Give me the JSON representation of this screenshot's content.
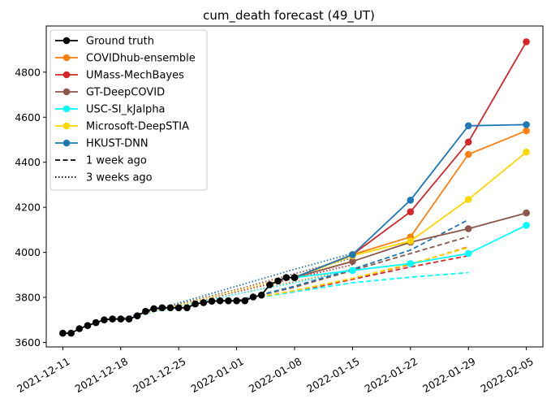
{
  "chart_data": {
    "type": "line",
    "title": "cum_death forecast (49_UT)",
    "xlabel": "",
    "ylabel": "",
    "x_ticks": [
      "2021-12-11",
      "2021-12-18",
      "2021-12-25",
      "2022-01-01",
      "2022-01-08",
      "2022-01-15",
      "2022-01-22",
      "2022-01-29",
      "2022-02-05"
    ],
    "y_ticks": [
      3600,
      3800,
      4000,
      4200,
      4400,
      4600,
      4800
    ],
    "xlim": [
      "2021-12-09",
      "2022-02-07"
    ],
    "ylim": [
      3580,
      5005
    ],
    "grid": false,
    "legend_position": "upper-left",
    "ground_truth": {
      "name": "Ground truth",
      "color": "#000000",
      "x": [
        "2021-12-11",
        "2021-12-12",
        "2021-12-13",
        "2021-12-14",
        "2021-12-15",
        "2021-12-16",
        "2021-12-17",
        "2021-12-18",
        "2021-12-19",
        "2021-12-20",
        "2021-12-21",
        "2021-12-22",
        "2021-12-23",
        "2021-12-24",
        "2021-12-25",
        "2021-12-26",
        "2021-12-27",
        "2021-12-28",
        "2021-12-29",
        "2021-12-30",
        "2021-12-31",
        "2022-01-01",
        "2022-01-02",
        "2022-01-03",
        "2022-01-04",
        "2022-01-05",
        "2022-01-06",
        "2022-01-07",
        "2022-01-08"
      ],
      "y": [
        3641,
        3641,
        3661,
        3675,
        3688,
        3700,
        3704,
        3704,
        3704,
        3718,
        3738,
        3750,
        3754,
        3754,
        3754,
        3754,
        3771,
        3777,
        3783,
        3785,
        3785,
        3785,
        3785,
        3802,
        3810,
        3856,
        3873,
        3888,
        3888
      ]
    },
    "forecasts": [
      {
        "name": "COVIDhub-ensemble",
        "color": "#ff7f0e",
        "current": {
          "x": [
            "2022-01-08",
            "2022-01-15",
            "2022-01-22",
            "2022-01-29",
            "2022-02-05"
          ],
          "y": [
            3888,
            3990,
            4068,
            4435,
            4540
          ]
        },
        "week1": {
          "x": [
            "2022-01-01",
            "2022-01-08",
            "2022-01-15",
            "2022-01-22",
            "2022-01-29"
          ],
          "y": [
            3785,
            3830,
            3885,
            3945,
            4025
          ]
        },
        "week3": {
          "x": [
            "2021-12-18",
            "2021-12-25",
            "2022-01-01",
            "2022-01-08",
            "2022-01-15"
          ],
          "y": [
            3704,
            3760,
            3815,
            3870,
            3925
          ]
        }
      },
      {
        "name": "UMass-MechBayes",
        "color": "#d62728",
        "current": {
          "x": [
            "2022-01-08",
            "2022-01-15",
            "2022-01-22",
            "2022-01-29",
            "2022-02-05"
          ],
          "y": [
            3888,
            3990,
            4180,
            4490,
            4935
          ]
        },
        "week1": {
          "x": [
            "2022-01-01",
            "2022-01-08",
            "2022-01-15",
            "2022-01-22",
            "2022-01-29"
          ],
          "y": [
            3785,
            3825,
            3880,
            3935,
            3985
          ]
        },
        "week3": {
          "x": [
            "2021-12-18",
            "2021-12-25",
            "2022-01-01",
            "2022-01-08",
            "2022-01-15"
          ],
          "y": [
            3704,
            3765,
            3825,
            3885,
            3945
          ]
        }
      },
      {
        "name": "GT-DeepCOVID",
        "color": "#8c564b",
        "current": {
          "x": [
            "2022-01-08",
            "2022-01-15",
            "2022-01-22",
            "2022-01-29",
            "2022-02-05"
          ],
          "y": [
            3888,
            3960,
            4045,
            4105,
            4175
          ]
        },
        "week1": {
          "x": [
            "2022-01-01",
            "2022-01-08",
            "2022-01-15",
            "2022-01-22",
            "2022-01-29"
          ],
          "y": [
            3785,
            3845,
            3920,
            3995,
            4070
          ]
        },
        "week3": {
          "x": [
            "2021-12-18",
            "2021-12-25",
            "2022-01-01",
            "2022-01-08",
            "2022-01-15"
          ],
          "y": [
            3704,
            3770,
            3835,
            3905,
            3975
          ]
        }
      },
      {
        "name": "USC-SI_kJalpha",
        "color": "#00ffff",
        "current": {
          "x": [
            "2022-01-08",
            "2022-01-15",
            "2022-01-22",
            "2022-01-29",
            "2022-02-05"
          ],
          "y": [
            3888,
            3920,
            3950,
            3995,
            4120
          ]
        },
        "week1": {
          "x": [
            "2022-01-01",
            "2022-01-08",
            "2022-01-15",
            "2022-01-22",
            "2022-01-29"
          ],
          "y": [
            3785,
            3825,
            3865,
            3890,
            3910
          ]
        },
        "week3": {
          "x": [
            "2021-12-18",
            "2021-12-25",
            "2022-01-01",
            "2022-01-08",
            "2022-01-15"
          ],
          "y": [
            3704,
            3760,
            3815,
            3865,
            3920
          ]
        }
      },
      {
        "name": "Microsoft-DeepSTIA",
        "color": "#ffd700",
        "current": {
          "x": [
            "2022-01-08",
            "2022-01-15",
            "2022-01-22",
            "2022-01-29",
            "2022-02-05"
          ],
          "y": [
            3888,
            3985,
            4050,
            4235,
            4445
          ]
        },
        "week1": {
          "x": [
            "2022-01-01",
            "2022-01-08",
            "2022-01-15",
            "2022-01-22",
            "2022-01-29"
          ],
          "y": [
            3785,
            3830,
            3885,
            3950,
            4020
          ]
        },
        "week3": {
          "x": [
            "2021-12-18",
            "2021-12-25",
            "2022-01-01",
            "2022-01-08",
            "2022-01-15"
          ],
          "y": [
            3704,
            3765,
            3830,
            3895,
            3960
          ]
        }
      },
      {
        "name": "HKUST-DNN",
        "color": "#1f77b4",
        "current": {
          "x": [
            "2022-01-08",
            "2022-01-15",
            "2022-01-22",
            "2022-01-29",
            "2022-02-05"
          ],
          "y": [
            3888,
            3990,
            4232,
            4562,
            4567
          ]
        },
        "week1": {
          "x": [
            "2022-01-01",
            "2022-01-08",
            "2022-01-15",
            "2022-01-22",
            "2022-01-29"
          ],
          "y": [
            3785,
            3850,
            3925,
            4010,
            4145
          ]
        },
        "week3": {
          "x": [
            "2021-12-18",
            "2021-12-25",
            "2022-01-01",
            "2022-01-08",
            "2022-01-15"
          ],
          "y": [
            3704,
            3775,
            3850,
            3925,
            3995
          ]
        }
      }
    ],
    "legend": [
      {
        "label": "Ground truth",
        "color": "#000000",
        "style": "solid",
        "marker": true
      },
      {
        "label": "COVIDhub-ensemble",
        "color": "#ff7f0e",
        "style": "solid",
        "marker": true
      },
      {
        "label": "UMass-MechBayes",
        "color": "#d62728",
        "style": "solid",
        "marker": true
      },
      {
        "label": "GT-DeepCOVID",
        "color": "#8c564b",
        "style": "solid",
        "marker": true
      },
      {
        "label": "USC-SI_kJalpha",
        "color": "#00ffff",
        "style": "solid",
        "marker": true
      },
      {
        "label": "Microsoft-DeepSTIA",
        "color": "#ffd700",
        "style": "solid",
        "marker": true
      },
      {
        "label": "HKUST-DNN",
        "color": "#1f77b4",
        "style": "solid",
        "marker": true
      },
      {
        "label": "1 week ago",
        "color": "#000000",
        "style": "dashed",
        "marker": false
      },
      {
        "label": "3 weeks ago",
        "color": "#000000",
        "style": "dotted",
        "marker": false
      }
    ]
  }
}
